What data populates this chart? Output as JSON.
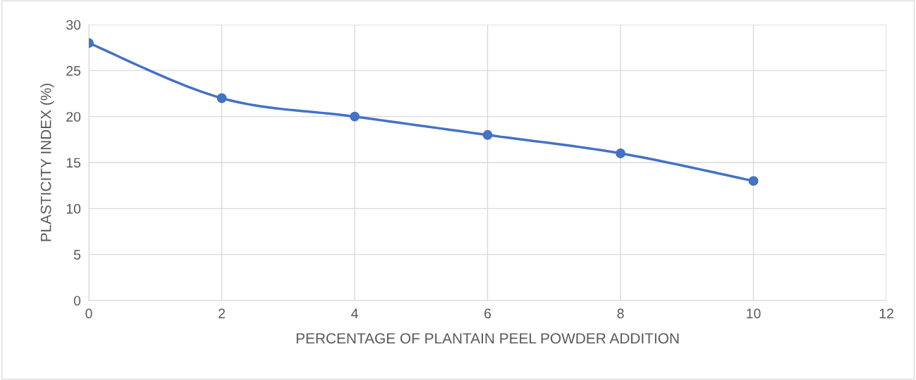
{
  "chart_data": {
    "type": "line",
    "xlabel": "PERCENTAGE OF PLANTAIN PEEL POWDER ADDITION",
    "ylabel": "PLASTICITY INDEX (%)",
    "x": [
      0,
      2,
      4,
      6,
      8,
      10
    ],
    "series": [
      {
        "color": "#4472c4",
        "values": [
          28,
          22,
          20,
          18,
          16,
          13
        ]
      }
    ],
    "xlim": [
      0,
      12
    ],
    "xticks": [
      0,
      2,
      4,
      6,
      8,
      10,
      12
    ],
    "ylim": [
      0,
      30
    ],
    "yticks": [
      0,
      5,
      10,
      15,
      20,
      25,
      30
    ],
    "grid": true,
    "marker": "circle",
    "line_style": "solid",
    "legend": false
  }
}
